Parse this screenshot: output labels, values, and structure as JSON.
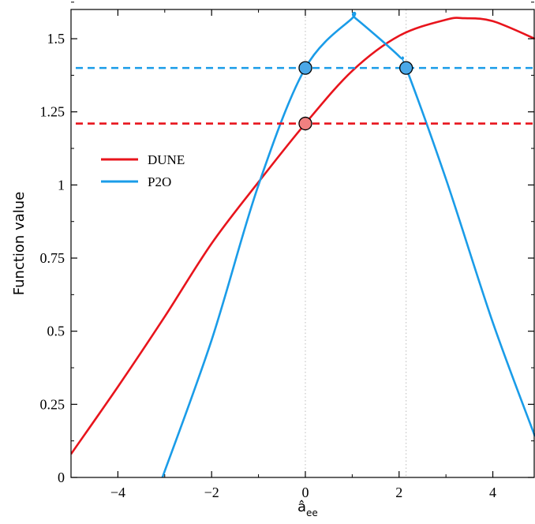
{
  "chart_data": {
    "type": "line",
    "title": "",
    "xlabel": "â",
    "xlabel_sub": "ee",
    "ylabel": "Function value",
    "xlim": [
      -5,
      4.9
    ],
    "ylim": [
      0,
      1.6
    ],
    "xticks": [
      -4,
      -2,
      0,
      2,
      4
    ],
    "xtick_labels": [
      "−4",
      "−2",
      "0",
      "2",
      "4"
    ],
    "yticks": [
      0,
      0.25,
      0.5,
      0.75,
      1,
      1.25,
      1.5
    ],
    "ytick_labels": [
      "0",
      "0.25",
      "0.5",
      "0.75",
      "1",
      "1.25",
      "1.5"
    ],
    "grid": false,
    "legend_position": "upper-left",
    "series": [
      {
        "name": "DUNE",
        "color": "#e8141c",
        "style": "solid",
        "x": [
          -5,
          -4,
          -3,
          -2,
          -1,
          0,
          1,
          2,
          3,
          3.4,
          4,
          4.9
        ],
        "y": [
          0.08,
          0.31,
          0.55,
          0.8,
          1.01,
          1.21,
          1.39,
          1.51,
          1.565,
          1.57,
          1.56,
          1.5
        ]
      },
      {
        "name": "P2O",
        "color": "#1a9ce8",
        "style": "solid",
        "x": [
          -3.05,
          -2,
          -1,
          0,
          1,
          1.07,
          2,
          2.15,
          3,
          4,
          4.9
        ],
        "y": [
          0,
          0.47,
          1.0,
          1.4,
          1.57,
          1.57,
          1.44,
          1.4,
          1.02,
          0.53,
          0.14
        ]
      }
    ],
    "reference_lines": [
      {
        "color": "#1a9ce8",
        "y": 1.4,
        "style": "dashed"
      },
      {
        "color": "#e8141c",
        "y": 1.21,
        "style": "dashed"
      }
    ],
    "markers": [
      {
        "x": 0,
        "y": 1.4,
        "color": "#4aa8e8"
      },
      {
        "x": 2.15,
        "y": 1.4,
        "color": "#4aa8e8"
      },
      {
        "x": 0,
        "y": 1.21,
        "color": "#f08080"
      }
    ],
    "vertical_guides": [
      0,
      2.15
    ]
  }
}
